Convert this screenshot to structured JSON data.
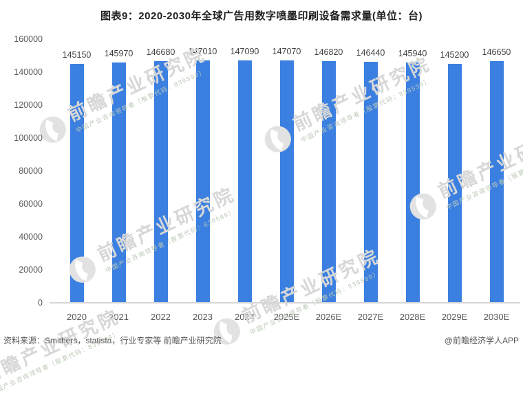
{
  "title": "图表9：2020-2030年全球广告用数字喷墨印刷设备需求量(单位：台)",
  "chart_data": {
    "type": "bar",
    "title": "图表9：2020-2030年全球广告用数字喷墨印刷设备需求量(单位：台)",
    "categories": [
      "2020",
      "2021",
      "2022",
      "2023",
      "2024",
      "2025E",
      "2026E",
      "2027E",
      "2028E",
      "2029E",
      "2030E"
    ],
    "values": [
      145150,
      145970,
      146680,
      147010,
      147090,
      147070,
      146820,
      146440,
      145940,
      145200,
      146650
    ],
    "xlabel": "",
    "ylabel": "",
    "unit": "台",
    "ylim": [
      0,
      160000
    ],
    "yticks": [
      0,
      20000,
      40000,
      60000,
      80000,
      100000,
      120000,
      140000,
      160000
    ],
    "grid": false,
    "legend_position": "none",
    "bar_color": "#3b80e0",
    "label_color": "#3f3f3f",
    "axis_color": "#595959"
  },
  "watermark": {
    "brand": "前瞻产业研究院",
    "tagline": "中国产业咨询领导者（股票代码：839599）"
  },
  "footer": {
    "source": "资料来源：Smithers，statista，行业专家等 前瞻产业研究院",
    "credit": "@前瞻经济学人APP"
  }
}
